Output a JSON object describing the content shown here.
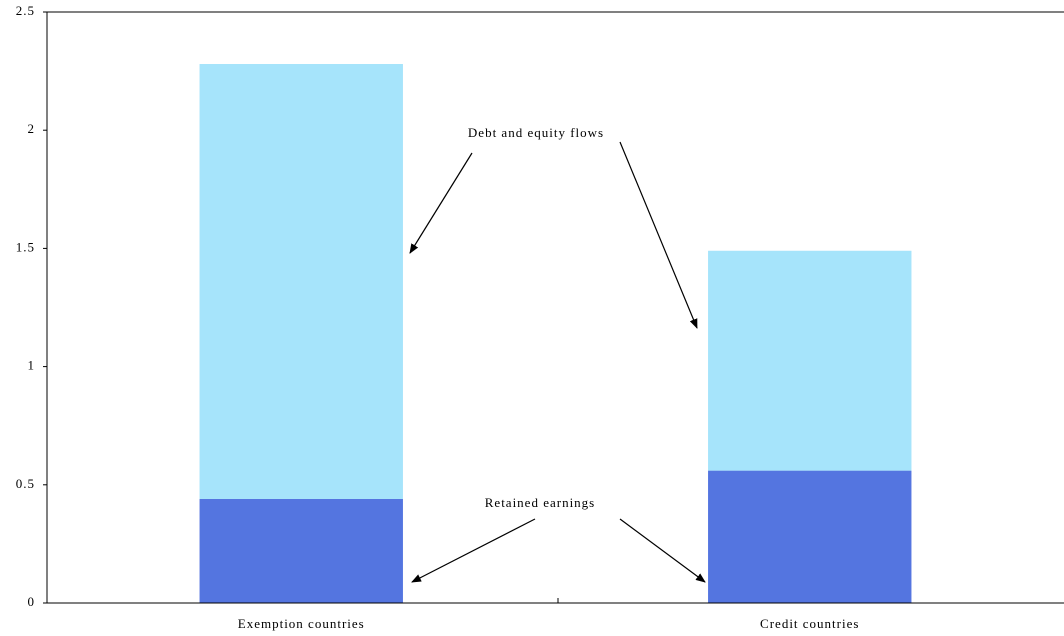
{
  "chart_data": {
    "type": "stacked_bar",
    "categories": [
      "Exemption countries",
      "Credit countries"
    ],
    "series": [
      {
        "name": "Retained earnings",
        "color": "#5475e0",
        "values": [
          0.44,
          0.56
        ]
      },
      {
        "name": "Debt and equity flows",
        "color": "#a6e4fb",
        "values": [
          1.84,
          0.93
        ]
      }
    ],
    "ylim": [
      0,
      2.5
    ],
    "yticks": [
      0,
      0.5,
      1,
      1.5,
      2,
      2.5
    ]
  }
}
